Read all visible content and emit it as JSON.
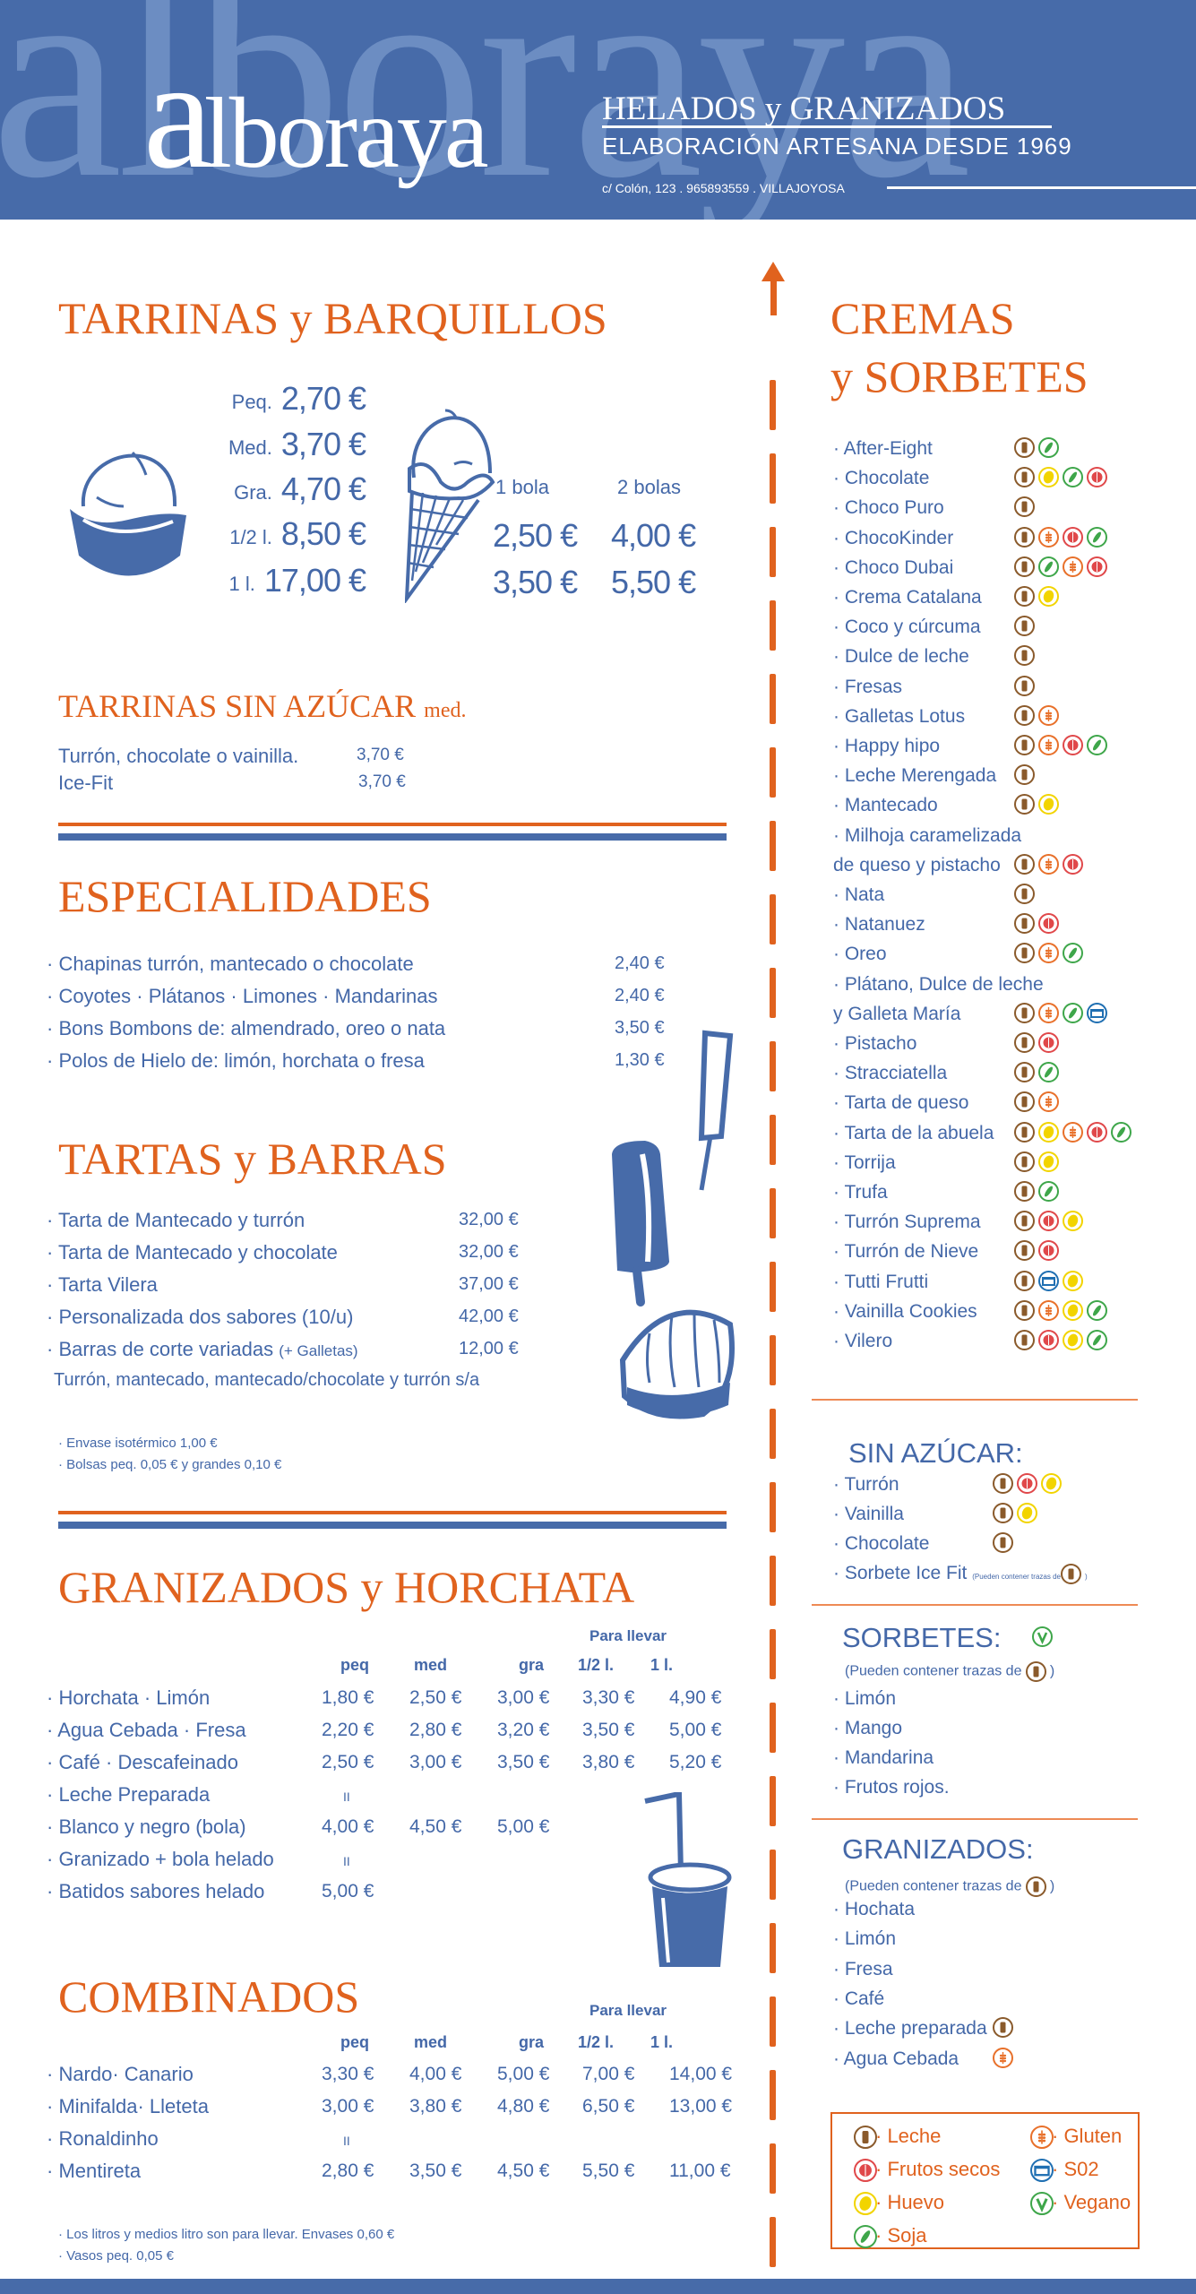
{
  "header": {
    "watermark": "alboraya",
    "logo_first": "a",
    "logo_rest": "lboraya",
    "tagline": "HELADOS y GRANIZADOS",
    "subtitle": "ELABORACIÓN ARTESANA DESDE 1969",
    "address": "c/ Colón, 123 . 965893559 . VILLAJOYOSA",
    "brand_color": "#476ba9",
    "accent_color": "#e0621e"
  },
  "tarrinas": {
    "title": "TARRINAS y BARQUILLOS",
    "sizes": [
      {
        "label": "Peq.",
        "price": "2,70 €"
      },
      {
        "label": "Med.",
        "price": "3,70 €"
      },
      {
        "label": "Gra.",
        "price": "4,70 €"
      },
      {
        "label": "1/2 l.",
        "price": "8,50 €"
      },
      {
        "label": "1 l.",
        "price": "17,00 €"
      }
    ],
    "cone_headers": [
      "1 bola",
      "2 bolas"
    ],
    "cone_prices": [
      [
        "2,50 €",
        "4,00 €"
      ],
      [
        "3,50 €",
        "5,50 €"
      ]
    ],
    "icons": [
      "ice-cream-tub-icon",
      "ice-cream-cone-icon"
    ]
  },
  "sin_azucar": {
    "title": "TARRINAS SIN AZÚCAR",
    "title_suffix": "med.",
    "items": [
      {
        "name": "Turrón, chocolate o vainilla.",
        "price": "3,70 €"
      },
      {
        "name": "Ice-Fit",
        "price": "3,70 €"
      }
    ]
  },
  "especialidades": {
    "title": "ESPECIALIDADES",
    "items": [
      {
        "name": "· Chapinas turrón, mantecado o chocolate",
        "price": "2,40 €"
      },
      {
        "name": "· Coyotes · Plátanos · Limones · Mandarinas",
        "price": "2,40 €"
      },
      {
        "name": "· Bons Bombons de: almendrado, oreo o nata",
        "price": "3,50 €"
      },
      {
        "name": "· Polos de Hielo de: limón, horchata o fresa",
        "price": "1,30 €"
      }
    ]
  },
  "tartas": {
    "title": "TARTAS y BARRAS",
    "items": [
      {
        "name": "· Tarta de Mantecado y turrón",
        "price": "32,00 €"
      },
      {
        "name": "· Tarta de Mantecado y chocolate",
        "price": "32,00 €"
      },
      {
        "name": "· Tarta Vilera",
        "price": "37,00 €"
      },
      {
        "name": "· Personalizada dos sabores (10/u)",
        "price": "42,00 €"
      },
      {
        "name": "· Barras de corte variadas",
        "note": "(+ Galletas)",
        "price": "12,00 €"
      }
    ],
    "flavors_note": "Turrón, mantecado, mantecado/chocolate y turrón s/a",
    "extras": [
      "· Envase isotérmico 1,00 €",
      "· Bolsas peq. 0,05 €  y  grandes 0,10 €"
    ]
  },
  "granizados": {
    "title": "GRANIZADOS y HORCHATA",
    "para_llevar": "Para llevar",
    "columns": [
      "peq",
      "med",
      "gra",
      "1/2 l.",
      "1 l."
    ],
    "rows": [
      {
        "name": "· Horchata ·  Limón",
        "prices": [
          "1,80 €",
          "2,50 €",
          "3,00 €",
          "3,30 €",
          "4,90 €"
        ]
      },
      {
        "name": "· Agua Cebada ·  Fresa",
        "prices": [
          "2,20 €",
          "2,80 €",
          "3,20 €",
          "3,50 €",
          "5,00 €"
        ]
      },
      {
        "name": "· Café ·  Descafeinado",
        "prices": [
          "2,50 €",
          "3,00 €",
          "3,50 €",
          "3,80 €",
          "5,20 €"
        ]
      },
      {
        "name": "· Leche Preparada",
        "prices": [
          "II"
        ]
      },
      {
        "name": "· Blanco y negro (bola)",
        "prices": [
          "4,00 €",
          "4,50 €",
          "5,00 €"
        ]
      },
      {
        "name": "· Granizado + bola helado",
        "prices": [
          "II"
        ]
      },
      {
        "name": "· Batidos sabores helado",
        "prices": [
          "5,00 €"
        ]
      }
    ]
  },
  "combinados": {
    "title": "COMBINADOS",
    "para_llevar": "Para llevar",
    "columns": [
      "peq",
      "med",
      "gra",
      "1/2 l.",
      "1 l."
    ],
    "rows": [
      {
        "name": "· Nardo· Canario",
        "prices": [
          "3,30 €",
          "4,00 €",
          "5,00 €",
          "7,00 €",
          "14,00 €"
        ]
      },
      {
        "name": "· Minifalda· Lleteta",
        "prices": [
          "3,00 €",
          "3,80 €",
          "4,80 €",
          "6,50 €",
          "13,00 €"
        ]
      },
      {
        "name": "· Ronaldinho",
        "prices": [
          "II"
        ]
      },
      {
        "name": "· Mentireta",
        "prices": [
          "2,80 €",
          "3,50 €",
          "4,50 €",
          "5,50 €",
          "11,00 €"
        ]
      }
    ],
    "notes": [
      "· Los litros y medios litro son para llevar. Envases 0,60 €",
      "· Vasos peq. 0,05 €"
    ]
  },
  "cremas": {
    "title_line1": "CREMAS",
    "title_line2": "y SORBETES",
    "items": [
      {
        "name": "· After-Eight",
        "allergens": [
          "leche",
          "soja"
        ]
      },
      {
        "name": "· Chocolate",
        "allergens": [
          "leche",
          "huevo",
          "soja",
          "frutos"
        ]
      },
      {
        "name": "· Choco Puro",
        "allergens": [
          "leche"
        ]
      },
      {
        "name": "· ChocoKinder",
        "allergens": [
          "leche",
          "gluten",
          "frutos",
          "soja"
        ]
      },
      {
        "name": "· Choco Dubai",
        "allergens": [
          "leche",
          "soja",
          "gluten",
          "frutos"
        ]
      },
      {
        "name": "· Crema Catalana",
        "allergens": [
          "leche",
          "huevo"
        ]
      },
      {
        "name": "· Coco y cúrcuma",
        "allergens": [
          "leche"
        ]
      },
      {
        "name": "· Dulce de leche",
        "allergens": [
          "leche"
        ]
      },
      {
        "name": "· Fresas",
        "allergens": [
          "leche"
        ]
      },
      {
        "name": "· Galletas Lotus",
        "allergens": [
          "leche",
          "gluten"
        ]
      },
      {
        "name": "· Happy hipo",
        "allergens": [
          "leche",
          "gluten",
          "frutos",
          "soja"
        ]
      },
      {
        "name": "· Leche Merengada",
        "allergens": [
          "leche"
        ]
      },
      {
        "name": "· Mantecado",
        "allergens": [
          "leche",
          "huevo"
        ]
      },
      {
        "name": "· Milhoja caramelizada",
        "allergens": []
      },
      {
        "name": "  de queso y pistacho",
        "allergens": [
          "leche",
          "gluten",
          "frutos"
        ]
      },
      {
        "name": "· Nata",
        "allergens": [
          "leche"
        ]
      },
      {
        "name": "· Natanuez",
        "allergens": [
          "leche",
          "frutos"
        ]
      },
      {
        "name": "· Oreo",
        "allergens": [
          "leche",
          "gluten",
          "soja"
        ]
      },
      {
        "name": "· Plátano, Dulce de leche",
        "allergens": []
      },
      {
        "name": "  y Galleta María",
        "allergens": [
          "leche",
          "gluten",
          "soja",
          "so2"
        ]
      },
      {
        "name": "· Pistacho",
        "allergens": [
          "leche",
          "frutos"
        ]
      },
      {
        "name": "· Stracciatella",
        "allergens": [
          "leche",
          "soja"
        ]
      },
      {
        "name": "· Tarta de queso",
        "allergens": [
          "leche",
          "gluten"
        ]
      },
      {
        "name": "· Tarta de la abuela",
        "allergens": [
          "leche",
          "huevo",
          "gluten",
          "frutos",
          "soja"
        ]
      },
      {
        "name": "· Torrija",
        "allergens": [
          "leche",
          "huevo"
        ]
      },
      {
        "name": "· Trufa",
        "allergens": [
          "leche",
          "soja"
        ]
      },
      {
        "name": "· Turrón Suprema",
        "allergens": [
          "leche",
          "frutos",
          "huevo"
        ]
      },
      {
        "name": "· Turrón de Nieve",
        "allergens": [
          "leche",
          "frutos"
        ]
      },
      {
        "name": "· Tutti Frutti",
        "allergens": [
          "leche",
          "so2",
          "huevo"
        ]
      },
      {
        "name": "· Vainilla Cookies",
        "allergens": [
          "leche",
          "gluten",
          "huevo",
          "soja"
        ]
      },
      {
        "name": "· Vilero",
        "allergens": [
          "leche",
          "frutos",
          "huevo",
          "soja"
        ]
      }
    ]
  },
  "sin_azucar_right": {
    "title": "SIN AZÚCAR:",
    "items": [
      {
        "name": "· Turrón",
        "allergens": [
          "leche",
          "frutos",
          "huevo"
        ]
      },
      {
        "name": "· Vainilla",
        "allergens": [
          "leche",
          "huevo"
        ]
      },
      {
        "name": "· Chocolate",
        "allergens": [
          "leche"
        ]
      }
    ],
    "ice_fit": "· Sorbete Ice Fit",
    "ice_fit_note": "(Pueden contener trazas de",
    "close_paren": ")"
  },
  "sorbetes": {
    "title": "SORBETES:",
    "badge": "vegano",
    "trace_note": "(Pueden contener trazas de",
    "close_paren": ")",
    "items": [
      "· Limón",
      "· Mango",
      "· Mandarina",
      "· Frutos rojos."
    ]
  },
  "granizados_right": {
    "title": "GRANIZADOS:",
    "trace_note": "(Pueden contener trazas de",
    "close_paren": ")",
    "items": [
      {
        "name": "· Hochata",
        "allergens": []
      },
      {
        "name": "· Limón",
        "allergens": []
      },
      {
        "name": "· Fresa",
        "allergens": []
      },
      {
        "name": "· Café",
        "allergens": []
      },
      {
        "name": "· Leche preparada",
        "allergens": [
          "leche"
        ]
      },
      {
        "name": "· Agua Cebada",
        "allergens": [
          "gluten"
        ]
      }
    ]
  },
  "legend": [
    {
      "key": "leche",
      "label": "· Leche"
    },
    {
      "key": "gluten",
      "label": "· Gluten"
    },
    {
      "key": "frutos",
      "label": "· Frutos secos"
    },
    {
      "key": "so2",
      "label": "· S02"
    },
    {
      "key": "huevo",
      "label": "· Huevo"
    },
    {
      "key": "vegano",
      "label": "· Vegano"
    },
    {
      "key": "soja",
      "label": "· Soja"
    }
  ],
  "allergen_colors": {
    "leche": "#8a5a2b",
    "gluten": "#e8702a",
    "frutos": "#e0484a",
    "huevo": "#f2d400",
    "soja": "#3ea64a",
    "so2": "#1f6fb2",
    "vegano": "#3ea64a"
  }
}
